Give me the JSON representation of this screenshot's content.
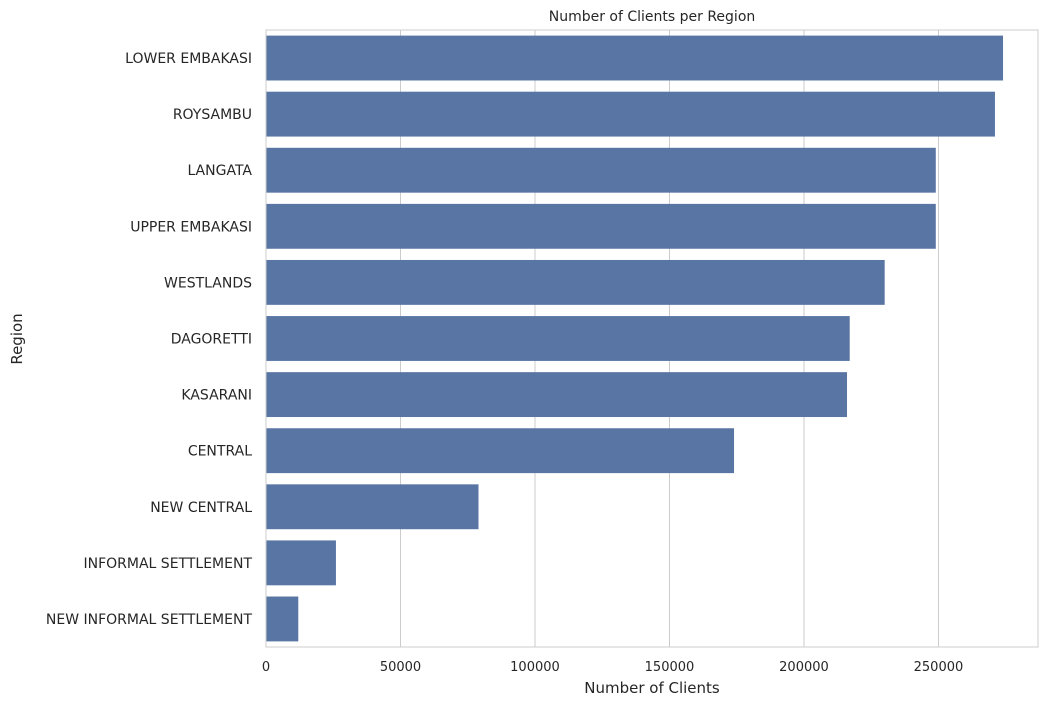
{
  "chart_data": {
    "type": "bar",
    "orientation": "horizontal",
    "title": "Number of Clients per Region",
    "xlabel": "Number of Clients",
    "ylabel": "Region",
    "categories": [
      "LOWER EMBAKASI",
      "ROYSAMBU",
      "LANGATA",
      "UPPER EMBAKASI",
      "WESTLANDS",
      "DAGORETTI",
      "KASARANI",
      "CENTRAL",
      "NEW CENTRAL",
      "INFORMAL SETTLEMENT",
      "NEW INFORMAL SETTLEMENT"
    ],
    "values": [
      274000,
      271000,
      249000,
      249000,
      230000,
      217000,
      216000,
      174000,
      79000,
      26000,
      12000
    ],
    "xlim": [
      0,
      287000
    ],
    "xticks": [
      0,
      50000,
      100000,
      150000,
      200000,
      250000
    ],
    "xtick_labels": [
      "0",
      "50000",
      "100000",
      "150000",
      "200000",
      "250000"
    ],
    "grid": true,
    "grid_axis": "x",
    "bar_color": "#5875a4",
    "grid_color": "#cccccc",
    "frame_color": "#cccccc"
  }
}
